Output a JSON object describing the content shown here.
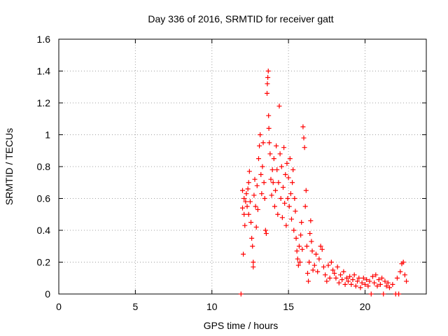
{
  "chart_data": {
    "type": "scatter",
    "title": "Day 336 of 2016, SRMTID for receiver gatt",
    "xlabel": "GPS time / hours",
    "ylabel": "SRMTID / TECUs",
    "xlim": [
      0,
      24
    ],
    "ylim": [
      0,
      1.6
    ],
    "xticks": [
      0,
      5,
      10,
      15,
      20
    ],
    "yticks": [
      0,
      0.2,
      0.4,
      0.6,
      0.8,
      1,
      1.2,
      1.4,
      1.6
    ],
    "ytick_labels": [
      "0",
      "0.2",
      "0.4",
      "0.6",
      "0.8",
      "1",
      "1.2",
      "1.4",
      "1.6"
    ],
    "grid": true,
    "marker": "+",
    "color": "#ff0000",
    "series": [
      {
        "name": "SRMTID",
        "points": [
          [
            11.9,
            0.0
          ],
          [
            12.0,
            0.54
          ],
          [
            12.0,
            0.65
          ],
          [
            12.05,
            0.25
          ],
          [
            12.1,
            0.5
          ],
          [
            12.1,
            0.6
          ],
          [
            12.15,
            0.43
          ],
          [
            12.2,
            0.58
          ],
          [
            12.25,
            0.63
          ],
          [
            12.3,
            0.55
          ],
          [
            12.35,
            0.66
          ],
          [
            12.4,
            0.7
          ],
          [
            12.4,
            0.5
          ],
          [
            12.45,
            0.77
          ],
          [
            12.5,
            0.58
          ],
          [
            12.55,
            0.45
          ],
          [
            12.6,
            0.35
          ],
          [
            12.65,
            0.3
          ],
          [
            12.7,
            0.17
          ],
          [
            12.7,
            0.2
          ],
          [
            12.75,
            0.62
          ],
          [
            12.8,
            0.72
          ],
          [
            12.85,
            0.55
          ],
          [
            12.9,
            0.42
          ],
          [
            12.95,
            0.68
          ],
          [
            13.0,
            0.53
          ],
          [
            13.05,
            0.85
          ],
          [
            13.1,
            0.93
          ],
          [
            13.15,
            1.0
          ],
          [
            13.2,
            0.75
          ],
          [
            13.25,
            0.63
          ],
          [
            13.3,
            0.8
          ],
          [
            13.35,
            0.95
          ],
          [
            13.4,
            0.7
          ],
          [
            13.45,
            0.6
          ],
          [
            13.5,
            0.4
          ],
          [
            13.55,
            0.38
          ],
          [
            13.6,
            1.26
          ],
          [
            13.62,
            1.32
          ],
          [
            13.65,
            1.36
          ],
          [
            13.68,
            1.4
          ],
          [
            13.7,
            1.12
          ],
          [
            13.72,
            1.04
          ],
          [
            13.75,
            0.95
          ],
          [
            13.8,
            0.88
          ],
          [
            13.85,
            0.72
          ],
          [
            13.9,
            0.62
          ],
          [
            13.95,
            0.78
          ],
          [
            14.0,
            0.7
          ],
          [
            14.05,
            0.85
          ],
          [
            14.1,
            0.55
          ],
          [
            14.15,
            0.65
          ],
          [
            14.2,
            0.93
          ],
          [
            14.25,
            0.78
          ],
          [
            14.3,
            0.5
          ],
          [
            14.35,
            0.7
          ],
          [
            14.4,
            1.18
          ],
          [
            14.45,
            0.88
          ],
          [
            14.5,
            0.6
          ],
          [
            14.55,
            0.8
          ],
          [
            14.6,
            0.48
          ],
          [
            14.65,
            0.67
          ],
          [
            14.7,
            0.92
          ],
          [
            14.75,
            0.57
          ],
          [
            14.8,
            0.75
          ],
          [
            14.85,
            0.43
          ],
          [
            14.9,
            0.82
          ],
          [
            14.95,
            0.6
          ],
          [
            15.0,
            0.73
          ],
          [
            15.05,
            0.55
          ],
          [
            15.1,
            0.85
          ],
          [
            15.15,
            0.63
          ],
          [
            15.2,
            0.47
          ],
          [
            15.25,
            0.7
          ],
          [
            15.3,
            0.78
          ],
          [
            15.35,
            0.4
          ],
          [
            15.4,
            0.6
          ],
          [
            15.45,
            0.52
          ],
          [
            15.5,
            0.35
          ],
          [
            15.55,
            0.27
          ],
          [
            15.6,
            0.22
          ],
          [
            15.65,
            0.18
          ],
          [
            15.7,
            0.3
          ],
          [
            15.75,
            0.2
          ],
          [
            15.8,
            0.37
          ],
          [
            15.85,
            0.45
          ],
          [
            15.9,
            0.28
          ],
          [
            15.95,
            1.05
          ],
          [
            16.0,
            0.98
          ],
          [
            16.05,
            0.92
          ],
          [
            16.1,
            0.55
          ],
          [
            16.15,
            0.65
          ],
          [
            16.2,
            0.3
          ],
          [
            16.25,
            0.13
          ],
          [
            16.3,
            0.08
          ],
          [
            16.35,
            0.2
          ],
          [
            16.4,
            0.38
          ],
          [
            16.45,
            0.46
          ],
          [
            16.5,
            0.33
          ],
          [
            16.55,
            0.27
          ],
          [
            16.6,
            0.15
          ],
          [
            16.7,
            0.18
          ],
          [
            16.8,
            0.25
          ],
          [
            16.9,
            0.14
          ],
          [
            17.0,
            0.22
          ],
          [
            17.1,
            0.3
          ],
          [
            17.2,
            0.28
          ],
          [
            17.3,
            0.17
          ],
          [
            17.4,
            0.12
          ],
          [
            17.5,
            0.08
          ],
          [
            17.6,
            0.18
          ],
          [
            17.7,
            0.1
          ],
          [
            17.8,
            0.2
          ],
          [
            17.9,
            0.15
          ],
          [
            18.0,
            0.13
          ],
          [
            18.1,
            0.1
          ],
          [
            18.2,
            0.17
          ],
          [
            18.3,
            0.07
          ],
          [
            18.4,
            0.12
          ],
          [
            18.5,
            0.09
          ],
          [
            18.6,
            0.14
          ],
          [
            18.7,
            0.06
          ],
          [
            18.8,
            0.1
          ],
          [
            18.9,
            0.08
          ],
          [
            19.0,
            0.11
          ],
          [
            19.1,
            0.06
          ],
          [
            19.2,
            0.09
          ],
          [
            19.3,
            0.12
          ],
          [
            19.4,
            0.05
          ],
          [
            19.5,
            0.08
          ],
          [
            19.6,
            0.1
          ],
          [
            19.7,
            0.04
          ],
          [
            19.8,
            0.07
          ],
          [
            19.9,
            0.1
          ],
          [
            20.0,
            0.06
          ],
          [
            20.1,
            0.09
          ],
          [
            20.2,
            0.05
          ],
          [
            20.3,
            0.08
          ],
          [
            20.4,
            0.0
          ],
          [
            20.5,
            0.11
          ],
          [
            20.6,
            0.07
          ],
          [
            20.7,
            0.12
          ],
          [
            20.8,
            0.05
          ],
          [
            20.9,
            0.09
          ],
          [
            21.0,
            0.06
          ],
          [
            21.1,
            0.1
          ],
          [
            21.2,
            0.0
          ],
          [
            21.3,
            0.08
          ],
          [
            21.4,
            0.05
          ],
          [
            21.5,
            0.07
          ],
          [
            21.6,
            0.04
          ],
          [
            21.8,
            0.06
          ],
          [
            22.0,
            0.0
          ],
          [
            22.1,
            0.1
          ],
          [
            22.2,
            0.0
          ],
          [
            22.3,
            0.14
          ],
          [
            22.4,
            0.19
          ],
          [
            22.5,
            0.2
          ],
          [
            22.6,
            0.12
          ],
          [
            22.7,
            0.08
          ]
        ]
      }
    ]
  }
}
